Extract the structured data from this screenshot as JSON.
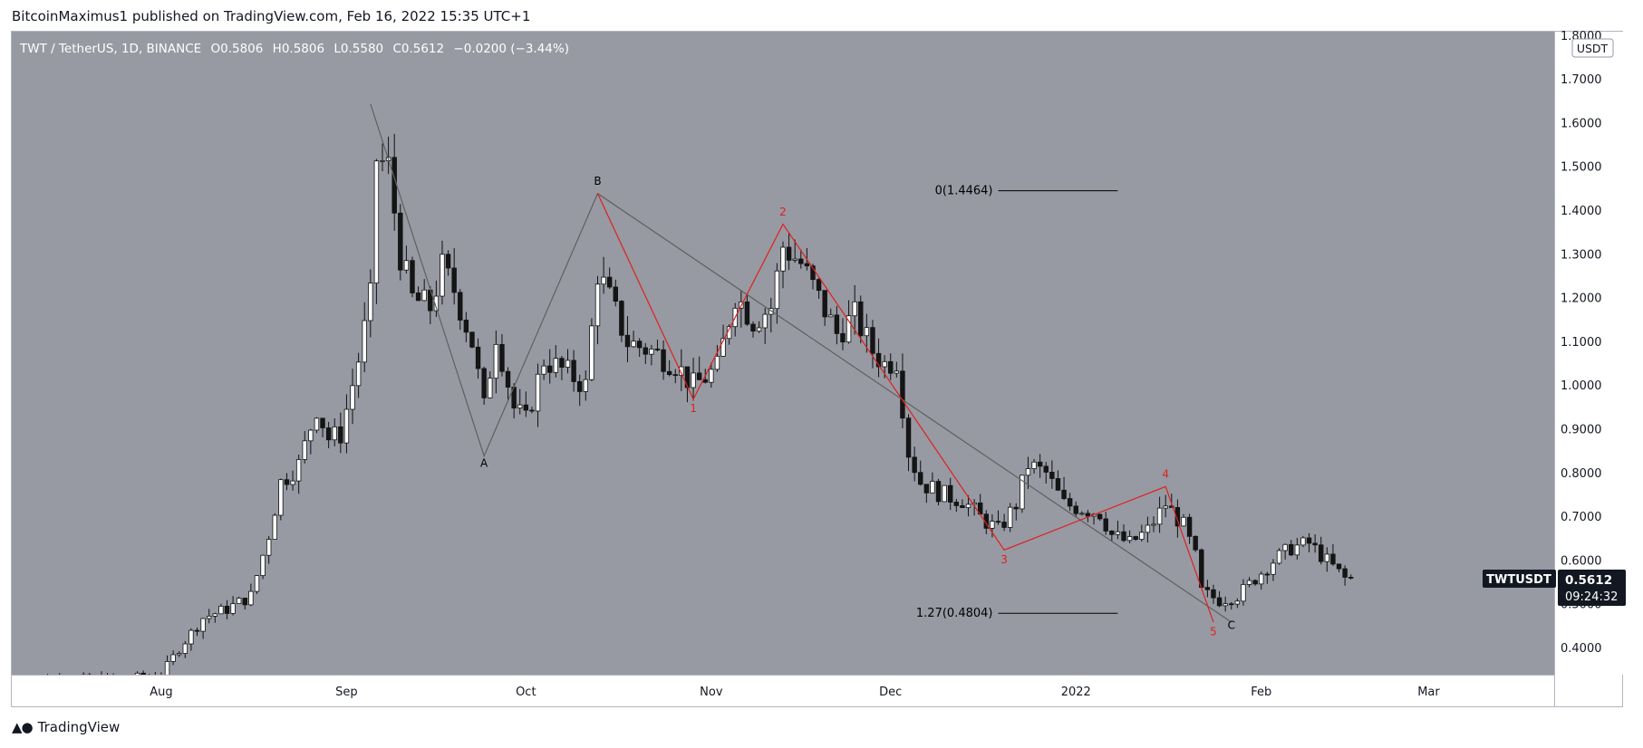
{
  "header": {
    "published": "BitcoinMaximus1 published on TradingView.com, Feb 16, 2022 15:35 UTC+1"
  },
  "footer": {
    "brand": "TradingView",
    "logo": "tradingview-logo-icon"
  },
  "colors": {
    "plot_background": "#979aa3",
    "bull": "#ffffff",
    "bear": "#151515",
    "wave_red": "#e0201d",
    "wave_gray": "#606060",
    "price_tag": "#131722"
  },
  "chart_data": {
    "type": "candlestick",
    "ohlc_header": {
      "symbol": "TWT / TetherUS, 1D, BINANCE",
      "o_label": "O",
      "o": "0.5806",
      "h_label": "H",
      "h": "0.5806",
      "l_label": "L",
      "l": "0.5580",
      "c_label": "C",
      "c": "0.5612",
      "change": "−0.0200 (−3.44%)"
    },
    "y_axis": {
      "unit": "USDT",
      "ticks": [
        "0.4000",
        "0.5000",
        "0.6000",
        "0.7000",
        "0.8000",
        "0.9000",
        "1.0000",
        "1.1000",
        "1.2000",
        "1.3000",
        "1.4000",
        "1.5000",
        "1.6000",
        "1.7000",
        "1.8000"
      ],
      "ylim": [
        0.34,
        1.81
      ]
    },
    "x_axis": {
      "ticks": [
        {
          "label": "Aug",
          "date": "2021-08-01"
        },
        {
          "label": "Sep",
          "date": "2021-09-01"
        },
        {
          "label": "Oct",
          "date": "2021-10-01"
        },
        {
          "label": "Nov",
          "date": "2021-11-01"
        },
        {
          "label": "Dec",
          "date": "2021-12-01"
        },
        {
          "label": "2022",
          "date": "2022-01-01"
        },
        {
          "label": "Feb",
          "date": "2022-02-01"
        },
        {
          "label": "Mar",
          "date": "2022-03-01"
        }
      ],
      "xlim": [
        "2021-07-07",
        "2022-03-22"
      ]
    },
    "last_price": {
      "symbol": "TWTUSDT",
      "price": "0.5612",
      "countdown": "09:24:32",
      "value": 0.5612
    },
    "close_path": [
      {
        "d": "2021-07-08",
        "v": 0.33
      },
      {
        "d": "2021-07-15",
        "v": 0.33
      },
      {
        "d": "2021-07-25",
        "v": 0.33
      },
      {
        "d": "2021-08-01",
        "v": 0.34
      },
      {
        "d": "2021-08-04",
        "v": 0.4
      },
      {
        "d": "2021-08-08",
        "v": 0.47
      },
      {
        "d": "2021-08-12",
        "v": 0.49
      },
      {
        "d": "2021-08-16",
        "v": 0.52
      },
      {
        "d": "2021-08-19",
        "v": 0.66
      },
      {
        "d": "2021-08-21",
        "v": 0.78
      },
      {
        "d": "2021-08-24",
        "v": 0.82
      },
      {
        "d": "2021-08-27",
        "v": 0.95
      },
      {
        "d": "2021-08-29",
        "v": 0.88
      },
      {
        "d": "2021-08-31",
        "v": 0.89
      },
      {
        "d": "2021-09-03",
        "v": 1.06
      },
      {
        "d": "2021-09-05",
        "v": 1.2
      },
      {
        "d": "2021-09-06",
        "v": 1.52
      },
      {
        "d": "2021-09-08",
        "v": 1.5
      },
      {
        "d": "2021-09-10",
        "v": 1.3
      },
      {
        "d": "2021-09-12",
        "v": 1.2
      },
      {
        "d": "2021-09-15",
        "v": 1.18
      },
      {
        "d": "2021-09-17",
        "v": 1.27
      },
      {
        "d": "2021-09-19",
        "v": 1.22
      },
      {
        "d": "2021-09-22",
        "v": 1.1
      },
      {
        "d": "2021-09-24",
        "v": 0.95
      },
      {
        "d": "2021-09-26",
        "v": 1.12
      },
      {
        "d": "2021-09-29",
        "v": 0.95
      },
      {
        "d": "2021-10-01",
        "v": 0.92
      },
      {
        "d": "2021-10-04",
        "v": 1.06
      },
      {
        "d": "2021-10-08",
        "v": 1.03
      },
      {
        "d": "2021-10-11",
        "v": 1.0
      },
      {
        "d": "2021-10-13",
        "v": 1.26
      },
      {
        "d": "2021-10-15",
        "v": 1.2
      },
      {
        "d": "2021-10-18",
        "v": 1.1
      },
      {
        "d": "2021-10-22",
        "v": 1.08
      },
      {
        "d": "2021-10-26",
        "v": 1.05
      },
      {
        "d": "2021-10-29",
        "v": 1.0
      },
      {
        "d": "2021-11-02",
        "v": 1.04
      },
      {
        "d": "2021-11-05",
        "v": 1.21
      },
      {
        "d": "2021-11-08",
        "v": 1.15
      },
      {
        "d": "2021-11-11",
        "v": 1.18
      },
      {
        "d": "2021-11-13",
        "v": 1.32
      },
      {
        "d": "2021-11-16",
        "v": 1.28
      },
      {
        "d": "2021-11-19",
        "v": 1.2
      },
      {
        "d": "2021-11-22",
        "v": 1.12
      },
      {
        "d": "2021-11-25",
        "v": 1.16
      },
      {
        "d": "2021-11-28",
        "v": 1.08
      },
      {
        "d": "2021-11-30",
        "v": 1.05
      },
      {
        "d": "2021-12-02",
        "v": 1.06
      },
      {
        "d": "2021-12-04",
        "v": 0.85
      },
      {
        "d": "2021-12-06",
        "v": 0.78
      },
      {
        "d": "2021-12-10",
        "v": 0.75
      },
      {
        "d": "2021-12-13",
        "v": 0.74
      },
      {
        "d": "2021-12-16",
        "v": 0.7
      },
      {
        "d": "2021-12-19",
        "v": 0.67
      },
      {
        "d": "2021-12-22",
        "v": 0.73
      },
      {
        "d": "2021-12-24",
        "v": 0.82
      },
      {
        "d": "2021-12-27",
        "v": 0.8
      },
      {
        "d": "2021-12-30",
        "v": 0.73
      },
      {
        "d": "2022-01-02",
        "v": 0.72
      },
      {
        "d": "2022-01-05",
        "v": 0.71
      },
      {
        "d": "2022-01-07",
        "v": 0.66
      },
      {
        "d": "2022-01-10",
        "v": 0.64
      },
      {
        "d": "2022-01-13",
        "v": 0.67
      },
      {
        "d": "2022-01-16",
        "v": 0.73
      },
      {
        "d": "2022-01-19",
        "v": 0.68
      },
      {
        "d": "2022-01-21",
        "v": 0.61
      },
      {
        "d": "2022-01-22",
        "v": 0.53
      },
      {
        "d": "2022-01-25",
        "v": 0.51
      },
      {
        "d": "2022-01-28",
        "v": 0.52
      },
      {
        "d": "2022-01-31",
        "v": 0.56
      },
      {
        "d": "2022-02-03",
        "v": 0.6
      },
      {
        "d": "2022-02-06",
        "v": 0.63
      },
      {
        "d": "2022-02-09",
        "v": 0.64
      },
      {
        "d": "2022-02-12",
        "v": 0.6
      },
      {
        "d": "2022-02-15",
        "v": 0.56
      },
      {
        "d": "2022-02-16",
        "v": 0.56
      }
    ],
    "annotations": {
      "abc_path": [
        {
          "d": "2021-09-05",
          "v": 1.645
        },
        {
          "d": "2021-09-24",
          "v": 0.84
        },
        {
          "d": "2021-10-13",
          "v": 1.44
        },
        {
          "d": "2022-01-27",
          "v": 0.46
        }
      ],
      "abc_labels": [
        {
          "text": "A",
          "d": "2021-09-24",
          "v": 0.815
        },
        {
          "text": "B",
          "d": "2021-10-13",
          "v": 1.46
        },
        {
          "text": "C",
          "d": "2022-01-27",
          "v": 0.445
        }
      ],
      "impulse_path": [
        {
          "d": "2021-10-13",
          "v": 1.44
        },
        {
          "d": "2021-10-29",
          "v": 0.97
        },
        {
          "d": "2021-11-13",
          "v": 1.37
        },
        {
          "d": "2021-12-20",
          "v": 0.625
        },
        {
          "d": "2022-01-16",
          "v": 0.77
        },
        {
          "d": "2022-01-24",
          "v": 0.46
        }
      ],
      "wave_labels": [
        {
          "text": "1",
          "d": "2021-10-29",
          "v": 0.94
        },
        {
          "text": "2",
          "d": "2021-11-13",
          "v": 1.39
        },
        {
          "text": "3",
          "d": "2021-12-20",
          "v": 0.595
        },
        {
          "text": "4",
          "d": "2022-01-16",
          "v": 0.79
        },
        {
          "text": "5",
          "d": "2022-01-24",
          "v": 0.43
        }
      ],
      "fib_levels": [
        {
          "label": "0(1.4464)",
          "value": 1.4464,
          "from": "2021-12-19",
          "to": "2022-01-08"
        },
        {
          "label": "1.27(0.4804)",
          "value": 0.4804,
          "from": "2021-12-19",
          "to": "2022-01-08"
        }
      ]
    }
  }
}
